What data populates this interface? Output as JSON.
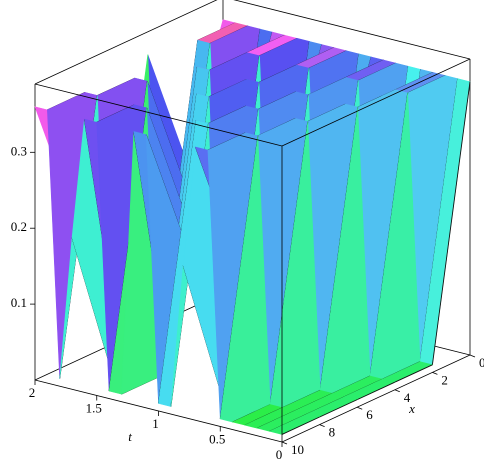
{
  "chart_data": {
    "type": "surface",
    "t_label": "t",
    "x_label": "x",
    "t": [
      0,
      0.1,
      0.2,
      0.3,
      0.4,
      0.5,
      0.6,
      0.7,
      0.8,
      0.9,
      1,
      1.1,
      1.2,
      1.3,
      1.4,
      1.5,
      1.6,
      1.7,
      1.8,
      1.9,
      2
    ],
    "x": [
      0,
      2,
      4,
      6,
      8,
      10
    ],
    "z": [
      [
        0.36,
        0.36,
        0.36,
        0.36,
        0.36,
        0.36,
        0.36,
        0.36,
        0.36,
        0.36,
        0.36,
        0.36,
        0.36,
        0.36,
        0.36,
        0.36,
        0.36,
        0.36,
        0.36,
        0.36,
        0.36
      ],
      [
        0.01,
        0.01,
        0.36,
        0.36,
        0.01,
        0.01,
        0.36,
        0.36,
        0.2,
        0.01,
        0.36,
        0.36,
        0.2,
        0.01,
        0.36,
        0.36,
        0.2,
        0.01,
        0.36,
        0.36,
        0.2
      ],
      [
        0.01,
        0.01,
        0.01,
        0.36,
        0.36,
        0.2,
        0.01,
        0.36,
        0.36,
        0.2,
        0.01,
        0.36,
        0.36,
        0.2,
        0.01,
        0.36,
        0.36,
        0.2,
        0.01,
        0.01,
        0.36
      ],
      [
        0.01,
        0.01,
        0.01,
        0.01,
        0.36,
        0.36,
        0.2,
        0.01,
        0.36,
        0.36,
        0.2,
        0.01,
        0.36,
        0.36,
        0.2,
        0.01,
        0.01,
        0.36,
        0.36,
        0.01,
        0.01
      ],
      [
        0.01,
        0.01,
        0.01,
        0.01,
        0.01,
        0.36,
        0.36,
        0.2,
        0.01,
        0.36,
        0.36,
        0.2,
        0.01,
        0.01,
        0.36,
        0.36,
        0.01,
        0.01,
        0.36,
        0.36,
        0.2
      ],
      [
        0.01,
        0.01,
        0.01,
        0.01,
        0.01,
        0.01,
        0.36,
        0.36,
        0.2,
        0.01,
        0.01,
        0.36,
        0.36,
        0.01,
        0.01,
        0.36,
        0.36,
        0.2,
        0.01,
        0.36,
        0.36
      ]
    ],
    "tlim": [
      0,
      2
    ],
    "xlim": [
      0,
      10
    ],
    "zlim": [
      0,
      0.39
    ],
    "tticks": [
      0,
      0.5,
      1,
      1.5,
      2
    ],
    "xticks": [
      0,
      2,
      4,
      6,
      8,
      10
    ],
    "zticks": [
      0.1,
      0.2,
      0.3
    ]
  }
}
